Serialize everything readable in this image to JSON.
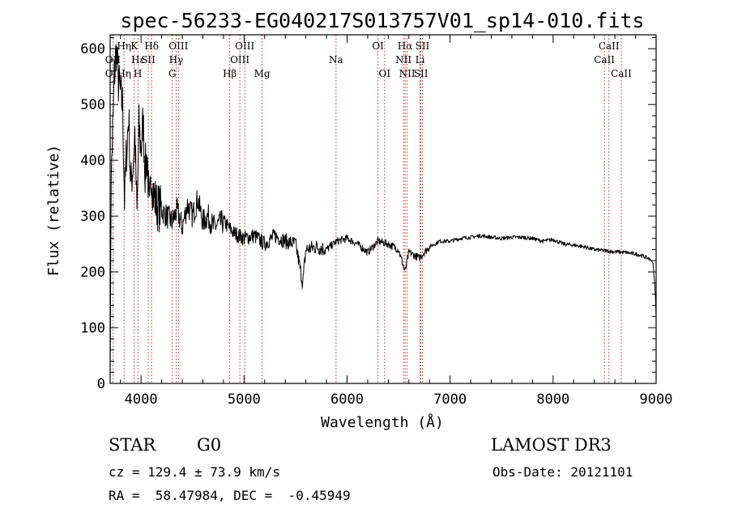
{
  "chart_data": {
    "type": "line",
    "title": "spec-56233-EG040217S013757V01_sp14-010.fits",
    "xlabel": "Wavelength (Å)",
    "ylabel": "Flux (relative)",
    "xlim": [
      3700,
      9000
    ],
    "ylim": [
      0,
      625
    ],
    "xticks": [
      4000,
      5000,
      6000,
      7000,
      8000,
      9000
    ],
    "yticks": [
      0,
      100,
      200,
      300,
      400,
      500,
      600
    ],
    "series": [
      {
        "name": "flux",
        "x": [
          3700,
          3710,
          3720,
          3730,
          3740,
          3760,
          3780,
          3800,
          3820,
          3840,
          3860,
          3880,
          3900,
          3920,
          3940,
          3960,
          3980,
          4000,
          4020,
          4040,
          4060,
          4080,
          4100,
          4120,
          4150,
          4200,
          4250,
          4300,
          4350,
          4400,
          4450,
          4500,
          4550,
          4600,
          4650,
          4700,
          4800,
          4900,
          5000,
          5100,
          5200,
          5300,
          5400,
          5500,
          5570,
          5600,
          5700,
          5800,
          5900,
          6000,
          6100,
          6200,
          6300,
          6400,
          6500,
          6563,
          6600,
          6700,
          6800,
          6900,
          7000,
          7100,
          7200,
          7300,
          7400,
          7500,
          7600,
          7700,
          7800,
          7900,
          8000,
          8100,
          8200,
          8300,
          8400,
          8500,
          8600,
          8700,
          8800,
          8850,
          8900,
          8950,
          8970,
          8990,
          9000
        ],
        "y": [
          5,
          360,
          430,
          480,
          550,
          600,
          540,
          520,
          500,
          330,
          420,
          480,
          350,
          390,
          450,
          300,
          460,
          420,
          470,
          380,
          410,
          300,
          380,
          340,
          320,
          310,
          300,
          290,
          310,
          280,
          320,
          300,
          330,
          290,
          300,
          280,
          290,
          270,
          260,
          265,
          250,
          265,
          255,
          250,
          180,
          240,
          245,
          240,
          255,
          260,
          250,
          235,
          255,
          250,
          240,
          200,
          235,
          225,
          245,
          255,
          255,
          260,
          262,
          265,
          262,
          260,
          262,
          262,
          260,
          255,
          258,
          250,
          248,
          245,
          240,
          238,
          236,
          235,
          232,
          230,
          226,
          222,
          215,
          170,
          120
        ]
      }
    ],
    "lines_top": [
      {
        "label": "Hη",
        "x": 3835
      },
      {
        "label": "K",
        "x": 3934
      },
      {
        "label": "Hδ",
        "x": 4102
      },
      {
        "label": "OIII",
        "x": 4363
      },
      {
        "label": "OIII",
        "x": 5007
      },
      {
        "label": "OI",
        "x": 6300
      },
      {
        "label": "Hα",
        "x": 6563
      },
      {
        "label": "SII",
        "x": 6731
      },
      {
        "label": "CaII",
        "x": 8542
      }
    ],
    "lines_mid": [
      {
        "label": "OII",
        "x": 3727
      },
      {
        "label": "Hε",
        "x": 3970
      },
      {
        "label": "SII",
        "x": 4070
      },
      {
        "label": "Hγ",
        "x": 4340
      },
      {
        "label": "OIII",
        "x": 4959
      },
      {
        "label": "Na",
        "x": 5893
      },
      {
        "label": "NII",
        "x": 6548
      },
      {
        "label": "Li",
        "x": 6708
      },
      {
        "label": "CaII",
        "x": 8498
      }
    ],
    "lines_low": [
      {
        "label": "OII",
        "x": 3727
      },
      {
        "label": "Hη",
        "x": 3835
      },
      {
        "label": "H",
        "x": 3968
      },
      {
        "label": "G",
        "x": 4304
      },
      {
        "label": "Hβ",
        "x": 4861
      },
      {
        "label": "Mg",
        "x": 5175
      },
      {
        "label": "OI",
        "x": 6364
      },
      {
        "label": "NII",
        "x": 6583
      },
      {
        "label": "SII",
        "x": 6717
      },
      {
        "label": "CaII",
        "x": 8662
      }
    ]
  },
  "info": {
    "class": "STAR",
    "subclass": "G0",
    "survey": "LAMOST DR3",
    "cz": "cz = 129.4 ± 73.9 km/s",
    "obs_date": "Obs-Date: 20121101",
    "radec": "RA =  58.47984, DEC =  -0.45949"
  },
  "colors": {
    "axis": "#000000",
    "spectrum": "#000000",
    "line_marker": "#c83232"
  }
}
